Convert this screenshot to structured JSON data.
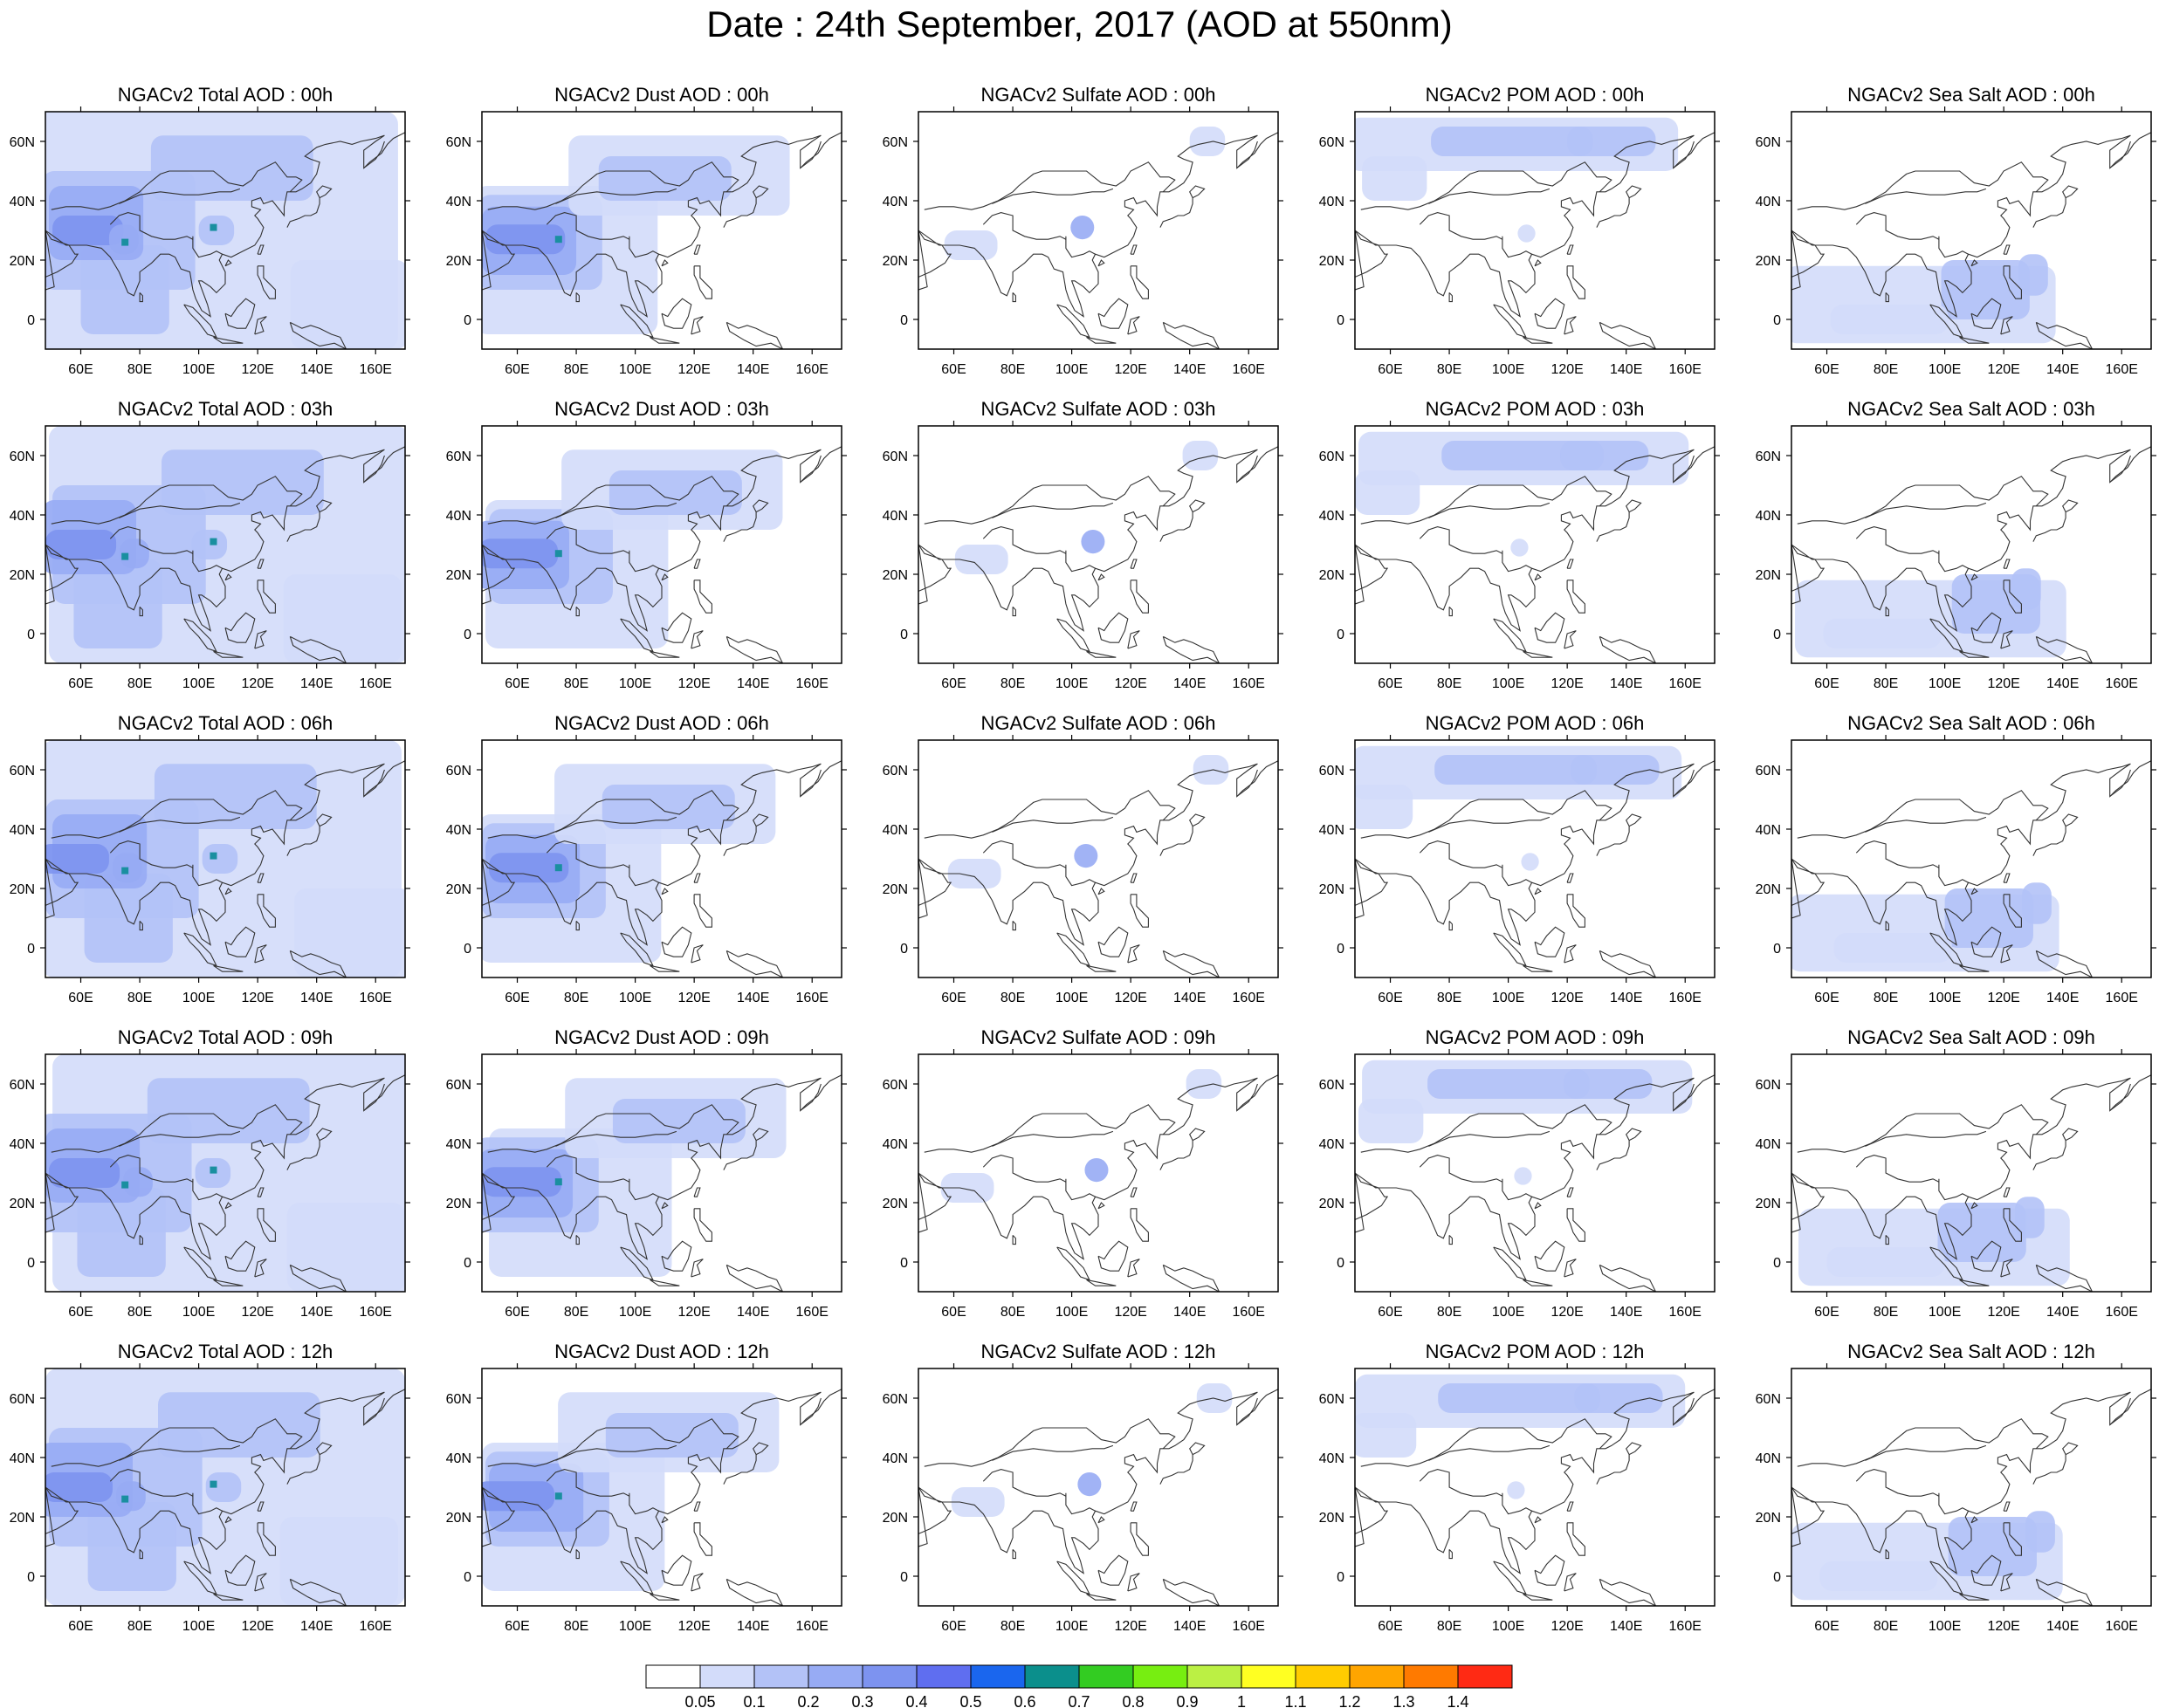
{
  "title": "Date : 24th September, 2017 (AOD at 550nm)",
  "rows": [
    {
      "hour": "00h",
      "titles": [
        "NGACv2 Total AOD : 00h",
        "NGACv2 Dust AOD : 00h",
        "NGACv2 Sulfate AOD : 00h",
        "NGACv2 POM AOD : 00h",
        "NGACv2 Sea Salt AOD : 00h"
      ]
    },
    {
      "hour": "03h",
      "titles": [
        "NGACv2 Total AOD : 03h",
        "NGACv2 Dust AOD : 03h",
        "NGACv2 Sulfate AOD : 03h",
        "NGACv2 POM AOD : 03h",
        "NGACv2 Sea Salt AOD : 03h"
      ]
    },
    {
      "hour": "06h",
      "titles": [
        "NGACv2 Total AOD : 06h",
        "NGACv2 Dust AOD : 06h",
        "NGACv2 Sulfate AOD : 06h",
        "NGACv2 POM AOD : 06h",
        "NGACv2 Sea Salt AOD : 06h"
      ]
    },
    {
      "hour": "09h",
      "titles": [
        "NGACv2 Total AOD : 09h",
        "NGACv2 Dust AOD : 09h",
        "NGACv2 Sulfate AOD : 09h",
        "NGACv2 POM AOD : 09h",
        "NGACv2 Sea Salt  AOD : 09h"
      ]
    },
    {
      "hour": "12h",
      "titles": [
        "NGACv2 Total AOD  : 12h",
        "NGACv2 Dust AOD : 12h",
        "NGACv2 Sulfate AOD : 12h",
        "NGACv2 POM  AOD : 12h",
        "NGACv2 Sea Salt  AOD : 12h"
      ]
    }
  ],
  "map_axes": {
    "lon_range": [
      48,
      170
    ],
    "lat_range": [
      -10,
      70
    ],
    "lon_ticks": [
      "60E",
      "80E",
      "100E",
      "120E",
      "140E",
      "160E"
    ],
    "lon_tick_values": [
      60,
      80,
      100,
      120,
      140,
      160
    ],
    "lat_ticks": [
      "60N",
      "40N",
      "20N",
      "0"
    ],
    "lat_tick_values": [
      60,
      40,
      20,
      0
    ]
  },
  "colorbar": {
    "labels": [
      "0.05",
      "0.1",
      "0.2",
      "0.3",
      "0.4",
      "0.5",
      "0.6",
      "0.7",
      "0.8",
      "0.9",
      "1",
      "1.1",
      "1.2",
      "1.3",
      "1.4"
    ],
    "colors": [
      "#ffffff",
      "#d3dcfa",
      "#b3c2f7",
      "#97abf4",
      "#7d93f0",
      "#5f6ef0",
      "#1a66ee",
      "#0b8f8c",
      "#33cc22",
      "#77ee11",
      "#bbf044",
      "#ffff22",
      "#ffcc00",
      "#ffa500",
      "#ff7a00",
      "#ff2a14"
    ]
  },
  "aod_levels": {
    "colors": {
      "faint": "#d3dcfa",
      "light": "#b3c2f7",
      "medium": "#97abf4",
      "dark": "#7d93f0",
      "hot": "#1a8fa0"
    }
  }
}
